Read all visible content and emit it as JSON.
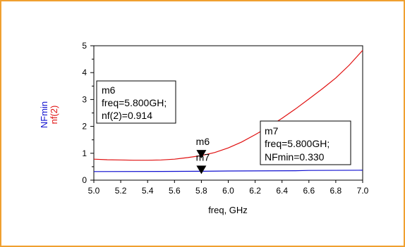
{
  "frame_color": "#f0a030",
  "chart_data": {
    "type": "line",
    "xlabel": "freq, GHz",
    "ylabels": [
      {
        "text": "NFmin",
        "color": "#1010d0"
      },
      {
        "text": "nf(2)",
        "color": "#e01010"
      }
    ],
    "xlim": [
      5.0,
      7.0
    ],
    "ylim": [
      0,
      5
    ],
    "xticks": [
      "5.0",
      "5.2",
      "5.4",
      "5.6",
      "5.8",
      "6.0",
      "6.2",
      "6.4",
      "6.6",
      "6.8",
      "7.0"
    ],
    "yticks": [
      "0",
      "1",
      "2",
      "3",
      "4",
      "5"
    ],
    "grid": false,
    "series": [
      {
        "name": "nf(2)",
        "color": "#e01010",
        "x": [
          5.0,
          5.1,
          5.2,
          5.3,
          5.4,
          5.5,
          5.6,
          5.7,
          5.8,
          5.9,
          6.0,
          6.1,
          6.2,
          6.3,
          6.4,
          6.5,
          6.6,
          6.7,
          6.8,
          6.9,
          7.0
        ],
        "y": [
          0.78,
          0.76,
          0.75,
          0.74,
          0.74,
          0.75,
          0.78,
          0.84,
          0.914,
          1.03,
          1.2,
          1.42,
          1.69,
          1.98,
          2.3,
          2.65,
          3.02,
          3.4,
          3.8,
          4.28,
          4.83
        ]
      },
      {
        "name": "NFmin",
        "color": "#1010d0",
        "x": [
          5.0,
          5.5,
          5.8,
          6.0,
          6.5,
          6.6,
          7.0
        ],
        "y": [
          0.32,
          0.325,
          0.33,
          0.34,
          0.35,
          0.36,
          0.37
        ]
      }
    ],
    "markers": [
      {
        "id": "m6",
        "label": "m6",
        "x": 5.8,
        "y": 0.914,
        "lines": [
          "m6",
          "freq=5.800GH;",
          "nf(2)=0.914"
        ]
      },
      {
        "id": "m7",
        "label": "m7",
        "x": 5.8,
        "y": 0.33,
        "lines": [
          "m7",
          "freq=5.800GH;",
          "NFmin=0.330"
        ]
      }
    ]
  }
}
